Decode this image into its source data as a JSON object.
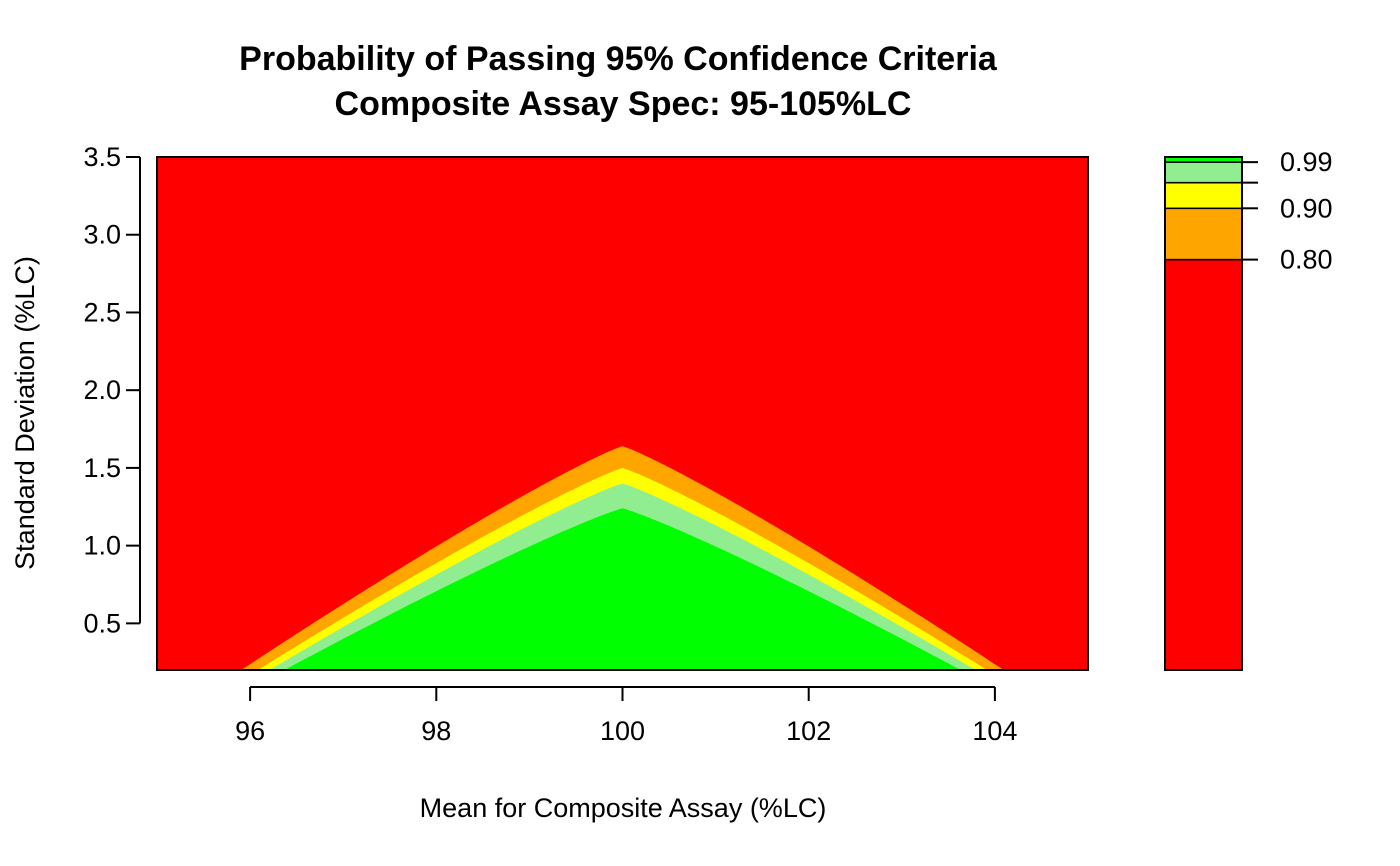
{
  "chart_data": {
    "type": "contour",
    "title": "Probability of Passing 95% Confidence Criteria",
    "subtitle": "Composite Assay Spec: 95-105%LC",
    "xlabel": "Mean for Composite Assay (%LC)",
    "ylabel": "Standard Deviation (%LC)",
    "xlim": [
      95,
      105
    ],
    "ylim": [
      0.2,
      3.5
    ],
    "x_ticks": [
      96,
      98,
      100,
      102,
      104
    ],
    "x_tick_labels": [
      "96",
      "98",
      "100",
      "102",
      "104"
    ],
    "y_ticks": [
      0.5,
      1.0,
      1.5,
      2.0,
      2.5,
      3.0,
      3.5
    ],
    "y_tick_labels": [
      "0.5",
      "1.0",
      "1.5",
      "2.0",
      "2.5",
      "3.0",
      "3.5"
    ],
    "contour_levels": [
      {
        "name": "< 0.80",
        "color": "#ff0000",
        "peak_sd": null,
        "zero_x": null
      },
      {
        "name": "0.80-0.90",
        "color": "#ffa500",
        "peak_sd": 1.64,
        "zero_x": 4.6
      },
      {
        "name": "0.90-0.95",
        "color": "#ffff00",
        "peak_sd": 1.5,
        "zero_x": 4.45
      },
      {
        "name": "0.95-0.99",
        "color": "#90ee90",
        "peak_sd": 1.4,
        "zero_x": 4.35
      },
      {
        "name": ">= 0.99",
        "color": "#00ff00",
        "peak_sd": 1.24,
        "zero_x": 4.25
      }
    ],
    "legend": {
      "placement": "right",
      "bands": [
        {
          "from": 0.0,
          "to": 0.8,
          "color": "#ff0000"
        },
        {
          "from": 0.8,
          "to": 0.9,
          "color": "#ffa500"
        },
        {
          "from": 0.9,
          "to": 0.95,
          "color": "#ffff00"
        },
        {
          "from": 0.95,
          "to": 0.99,
          "color": "#90ee90"
        },
        {
          "from": 0.99,
          "to": 1.0,
          "color": "#00ff00"
        }
      ],
      "labeled_breaks": [
        {
          "value": 0.99,
          "label": "0.99"
        },
        {
          "value": 0.95,
          "label": ""
        },
        {
          "value": 0.9,
          "label": "0.90"
        },
        {
          "value": 0.8,
          "label": "0.80"
        }
      ]
    }
  }
}
